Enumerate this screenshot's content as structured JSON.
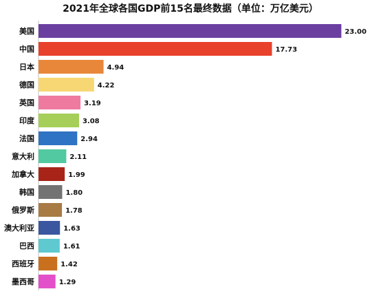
{
  "chart_data": {
    "type": "bar",
    "orientation": "horizontal",
    "title": "2021年全球各国GDP前15名最终数据（单位：万亿美元）",
    "xlabel": "",
    "ylabel": "",
    "xlim": [
      0,
      23.4
    ],
    "grid": false,
    "legend": "none",
    "categories": [
      "美国",
      "中国",
      "日本",
      "德国",
      "英国",
      "印度",
      "法国",
      "意大利",
      "加拿大",
      "韩国",
      "俄罗斯",
      "澳大利亚",
      "巴西",
      "西班牙",
      "墨西哥"
    ],
    "values": [
      23.0,
      17.73,
      4.94,
      4.22,
      3.19,
      3.08,
      2.94,
      2.11,
      1.99,
      1.8,
      1.78,
      1.63,
      1.61,
      1.42,
      1.29
    ],
    "value_labels": [
      "23.00",
      "17.73",
      "4.94",
      "4.22",
      "3.19",
      "3.08",
      "2.94",
      "2.11",
      "1.99",
      "1.80",
      "1.78",
      "1.63",
      "1.61",
      "1.42",
      "1.29"
    ],
    "colors": [
      "#6b3fa0",
      "#e8412c",
      "#e8873a",
      "#f7d774",
      "#ee7aa0",
      "#a5cf58",
      "#2f73c4",
      "#52c9a0",
      "#a82418",
      "#737373",
      "#a87b45",
      "#3a57a0",
      "#5ec9cf",
      "#c9701f",
      "#e24fc9"
    ]
  }
}
